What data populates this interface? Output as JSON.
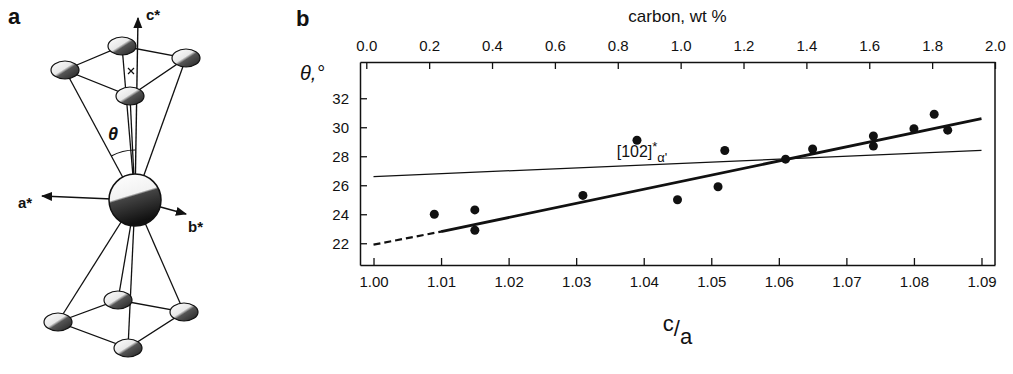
{
  "diagram": {
    "label": "a",
    "axes": {
      "c": "c*",
      "a": "a*",
      "b": "b*"
    },
    "angle": "θ"
  },
  "chart_data": {
    "type": "scatter",
    "label": "b",
    "xlabel": "c/a",
    "ylabel": "θ,°",
    "x2label": "carbon, wt %",
    "xlim": [
      0.998,
      1.092
    ],
    "xticks": [
      {
        "value": 1.0,
        "label": "1.00"
      },
      1.01,
      1.02,
      1.03,
      1.04,
      1.05,
      1.06,
      1.07,
      1.08,
      1.09
    ],
    "x2lim": [
      -0.02,
      2.0
    ],
    "x2ticks": [
      {
        "value": 0,
        "label": "0.0"
      },
      0.2,
      0.4,
      0.6,
      0.8,
      {
        "value": 1,
        "label": "1.0"
      },
      1.2,
      1.4,
      1.6,
      1.8,
      {
        "value": 2,
        "label": "2.0"
      }
    ],
    "ylim": [
      20.5,
      34.5
    ],
    "yticks": [
      22,
      24,
      26,
      28,
      30,
      32
    ],
    "grid": false,
    "series": [
      {
        "type": "scatter",
        "marker": "circle",
        "color": "#111111",
        "x": [
          1.009,
          1.015,
          1.015,
          1.031,
          1.039,
          1.045,
          1.051,
          1.052,
          1.061,
          1.065,
          1.074,
          1.074,
          1.08,
          1.083,
          1.085
        ],
        "values": [
          24.0,
          24.3,
          22.9,
          25.3,
          29.1,
          25.0,
          25.9,
          28.4,
          27.8,
          28.5,
          29.4,
          28.7,
          29.9,
          30.9,
          29.8
        ]
      },
      {
        "type": "line",
        "line_style": "solid",
        "color": "#111111",
        "x": [
          1.01,
          1.09
        ],
        "values": [
          22.8,
          30.6
        ]
      },
      {
        "type": "line",
        "line_style": "dashed",
        "color": "#111111",
        "x": [
          1.0,
          1.01
        ],
        "values": [
          21.9,
          22.8
        ]
      },
      {
        "type": "line",
        "line_style": "thin",
        "color": "#111111",
        "name": "[102]*α'",
        "x": [
          1.0,
          1.09
        ],
        "values": [
          26.6,
          28.4
        ]
      }
    ]
  }
}
